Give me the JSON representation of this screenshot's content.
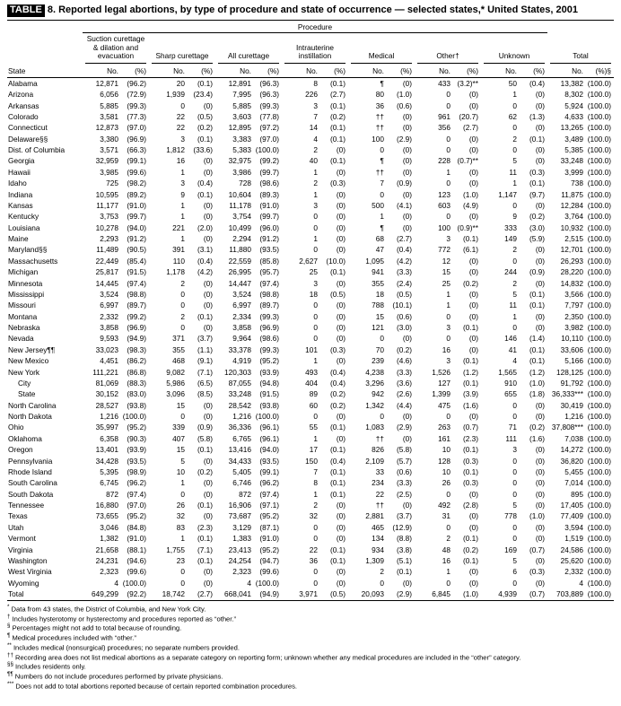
{
  "title": {
    "chip": "TABLE",
    "rest": "8. Reported legal abortions, by type of procedure and state of occurrence — selected states,* United States, 2001"
  },
  "header": {
    "procedure": "Procedure",
    "state": "State",
    "no": "No.",
    "pct": "(%)",
    "total_pct": "(%)§",
    "groups": [
      "Suction curettage & dilation and evacuation",
      "Sharp curettage",
      "All curettage",
      "Intrauterine instillation",
      "Medical",
      "Other†",
      "Unknown",
      "Total"
    ]
  },
  "rows": [
    {
      "state": "Alabama",
      "cells": [
        "12,871",
        "(96.2)",
        "20",
        "(0.1)",
        "12,891",
        "(96.3)",
        "8",
        "(0.1)",
        "¶",
        "(0)",
        "433",
        "(3.2)**",
        "50",
        "(0.4)",
        "13,382",
        "(100.0)"
      ]
    },
    {
      "state": "Arizona",
      "cells": [
        "6,056",
        "(72.9)",
        "1,939",
        "(23.4)",
        "7,995",
        "(96.3)",
        "226",
        "(2.7)",
        "80",
        "(1.0)",
        "0",
        "(0)",
        "1",
        "(0)",
        "8,302",
        "(100.0)"
      ]
    },
    {
      "state": "Arkansas",
      "cells": [
        "5,885",
        "(99.3)",
        "0",
        "(0)",
        "5,885",
        "(99.3)",
        "3",
        "(0.1)",
        "36",
        "(0.6)",
        "0",
        "(0)",
        "0",
        "(0)",
        "5,924",
        "(100.0)"
      ]
    },
    {
      "state": "Colorado",
      "cells": [
        "3,581",
        "(77.3)",
        "22",
        "(0.5)",
        "3,603",
        "(77.8)",
        "7",
        "(0.2)",
        "††",
        "(0)",
        "961",
        "(20.7)",
        "62",
        "(1.3)",
        "4,633",
        "(100.0)"
      ]
    },
    {
      "state": "Connecticut",
      "cells": [
        "12,873",
        "(97.0)",
        "22",
        "(0.2)",
        "12,895",
        "(97.2)",
        "14",
        "(0.1)",
        "††",
        "(0)",
        "356",
        "(2.7)",
        "0",
        "(0)",
        "13,265",
        "(100.0)"
      ]
    },
    {
      "state": "Delaware§§",
      "cells": [
        "3,380",
        "(96.9)",
        "3",
        "(0.1)",
        "3,383",
        "(97.0)",
        "4",
        "(0.1)",
        "100",
        "(2.9)",
        "0",
        "(0)",
        "2",
        "(0.1)",
        "3,489",
        "(100.0)"
      ]
    },
    {
      "state": "Dist. of Columbia",
      "cells": [
        "3,571",
        "(66.3)",
        "1,812",
        "(33.6)",
        "5,383",
        "(100.0)",
        "2",
        "(0)",
        "0",
        "(0)",
        "0",
        "(0)",
        "0",
        "(0)",
        "5,385",
        "(100.0)"
      ]
    },
    {
      "state": "Georgia",
      "cells": [
        "32,959",
        "(99.1)",
        "16",
        "(0)",
        "32,975",
        "(99.2)",
        "40",
        "(0.1)",
        "¶",
        "(0)",
        "228",
        "(0.7)**",
        "5",
        "(0)",
        "33,248",
        "(100.0)"
      ]
    },
    {
      "state": "Hawaii",
      "cells": [
        "3,985",
        "(99.6)",
        "1",
        "(0)",
        "3,986",
        "(99.7)",
        "1",
        "(0)",
        "††",
        "(0)",
        "1",
        "(0)",
        "11",
        "(0.3)",
        "3,999",
        "(100.0)"
      ]
    },
    {
      "state": "Idaho",
      "cells": [
        "725",
        "(98.2)",
        "3",
        "(0.4)",
        "728",
        "(98.6)",
        "2",
        "(0.3)",
        "7",
        "(0.9)",
        "0",
        "(0)",
        "1",
        "(0.1)",
        "738",
        "(100.0)"
      ]
    },
    {
      "state": "Indiana",
      "cells": [
        "10,595",
        "(89.2)",
        "9",
        "(0.1)",
        "10,604",
        "(89.3)",
        "1",
        "(0)",
        "0",
        "(0)",
        "123",
        "(1.0)",
        "1,147",
        "(9.7)",
        "11,875",
        "(100.0)"
      ]
    },
    {
      "state": "Kansas",
      "cells": [
        "11,177",
        "(91.0)",
        "1",
        "(0)",
        "11,178",
        "(91.0)",
        "3",
        "(0)",
        "500",
        "(4.1)",
        "603",
        "(4.9)",
        "0",
        "(0)",
        "12,284",
        "(100.0)"
      ]
    },
    {
      "state": "Kentucky",
      "cells": [
        "3,753",
        "(99.7)",
        "1",
        "(0)",
        "3,754",
        "(99.7)",
        "0",
        "(0)",
        "1",
        "(0)",
        "0",
        "(0)",
        "9",
        "(0.2)",
        "3,764",
        "(100.0)"
      ]
    },
    {
      "state": "Louisiana",
      "cells": [
        "10,278",
        "(94.0)",
        "221",
        "(2.0)",
        "10,499",
        "(96.0)",
        "0",
        "(0)",
        "¶",
        "(0)",
        "100",
        "(0.9)**",
        "333",
        "(3.0)",
        "10,932",
        "(100.0)"
      ]
    },
    {
      "state": "Maine",
      "cells": [
        "2,293",
        "(91.2)",
        "1",
        "(0)",
        "2,294",
        "(91.2)",
        "1",
        "(0)",
        "68",
        "(2.7)",
        "3",
        "(0.1)",
        "149",
        "(5.9)",
        "2,515",
        "(100.0)"
      ]
    },
    {
      "state": "Maryland§§",
      "cells": [
        "11,489",
        "(90.5)",
        "391",
        "(3.1)",
        "11,880",
        "(93.5)",
        "0",
        "(0)",
        "47",
        "(0.4)",
        "772",
        "(6.1)",
        "2",
        "(0)",
        "12,701",
        "(100.0)"
      ]
    },
    {
      "state": "Massachusetts",
      "cells": [
        "22,449",
        "(85.4)",
        "110",
        "(0.4)",
        "22,559",
        "(85.8)",
        "2,627",
        "(10.0)",
        "1,095",
        "(4.2)",
        "12",
        "(0)",
        "0",
        "(0)",
        "26,293",
        "(100.0)"
      ]
    },
    {
      "state": "Michigan",
      "cells": [
        "25,817",
        "(91.5)",
        "1,178",
        "(4.2)",
        "26,995",
        "(95.7)",
        "25",
        "(0.1)",
        "941",
        "(3.3)",
        "15",
        "(0)",
        "244",
        "(0.9)",
        "28,220",
        "(100.0)"
      ]
    },
    {
      "state": "Minnesota",
      "cells": [
        "14,445",
        "(97.4)",
        "2",
        "(0)",
        "14,447",
        "(97.4)",
        "3",
        "(0)",
        "355",
        "(2.4)",
        "25",
        "(0.2)",
        "2",
        "(0)",
        "14,832",
        "(100.0)"
      ]
    },
    {
      "state": "Mississippi",
      "cells": [
        "3,524",
        "(98.8)",
        "0",
        "(0)",
        "3,524",
        "(98.8)",
        "18",
        "(0.5)",
        "18",
        "(0.5)",
        "1",
        "(0)",
        "5",
        "(0.1)",
        "3,566",
        "(100.0)"
      ]
    },
    {
      "state": "Missouri",
      "cells": [
        "6,997",
        "(89.7)",
        "0",
        "(0)",
        "6,997",
        "(89.7)",
        "0",
        "(0)",
        "788",
        "(10.1)",
        "1",
        "(0)",
        "11",
        "(0.1)",
        "7,797",
        "(100.0)"
      ]
    },
    {
      "state": "Montana",
      "cells": [
        "2,332",
        "(99.2)",
        "2",
        "(0.1)",
        "2,334",
        "(99.3)",
        "0",
        "(0)",
        "15",
        "(0.6)",
        "0",
        "(0)",
        "1",
        "(0)",
        "2,350",
        "(100.0)"
      ]
    },
    {
      "state": "Nebraska",
      "cells": [
        "3,858",
        "(96.9)",
        "0",
        "(0)",
        "3,858",
        "(96.9)",
        "0",
        "(0)",
        "121",
        "(3.0)",
        "3",
        "(0.1)",
        "0",
        "(0)",
        "3,982",
        "(100.0)"
      ]
    },
    {
      "state": "Nevada",
      "cells": [
        "9,593",
        "(94.9)",
        "371",
        "(3.7)",
        "9,964",
        "(98.6)",
        "0",
        "(0)",
        "0",
        "(0)",
        "0",
        "(0)",
        "146",
        "(1.4)",
        "10,110",
        "(100.0)"
      ]
    },
    {
      "state": "New Jersey¶¶",
      "cells": [
        "33,023",
        "(98.3)",
        "355",
        "(1.1)",
        "33,378",
        "(99.3)",
        "101",
        "(0.3)",
        "70",
        "(0.2)",
        "16",
        "(0)",
        "41",
        "(0.1)",
        "33,606",
        "(100.0)"
      ]
    },
    {
      "state": "New Mexico",
      "cells": [
        "4,451",
        "(86.2)",
        "468",
        "(9.1)",
        "4,919",
        "(95.2)",
        "1",
        "(0)",
        "239",
        "(4.6)",
        "3",
        "(0.1)",
        "4",
        "(0.1)",
        "5,166",
        "(100.0)"
      ]
    },
    {
      "state": "New York",
      "cells": [
        "111,221",
        "(86.8)",
        "9,082",
        "(7.1)",
        "120,303",
        "(93.9)",
        "493",
        "(0.4)",
        "4,238",
        "(3.3)",
        "1,526",
        "(1.2)",
        "1,565",
        "(1.2)",
        "128,125",
        "(100.0)"
      ]
    },
    {
      "state": "City",
      "indent": true,
      "cells": [
        "81,069",
        "(88.3)",
        "5,986",
        "(6.5)",
        "87,055",
        "(94.8)",
        "404",
        "(0.4)",
        "3,296",
        "(3.6)",
        "127",
        "(0.1)",
        "910",
        "(1.0)",
        "91,792",
        "(100.0)"
      ]
    },
    {
      "state": "State",
      "indent": true,
      "cells": [
        "30,152",
        "(83.0)",
        "3,096",
        "(8.5)",
        "33,248",
        "(91.5)",
        "89",
        "(0.2)",
        "942",
        "(2.6)",
        "1,399",
        "(3.9)",
        "655",
        "(1.8)",
        "36,333***",
        "(100.0)"
      ]
    },
    {
      "state": "North Carolina",
      "cells": [
        "28,527",
        "(93.8)",
        "15",
        "(0)",
        "28,542",
        "(93.8)",
        "60",
        "(0.2)",
        "1,342",
        "(4.4)",
        "475",
        "(1.6)",
        "0",
        "(0)",
        "30,419",
        "(100.0)"
      ]
    },
    {
      "state": "North Dakota",
      "cells": [
        "1,216",
        "(100.0)",
        "0",
        "(0)",
        "1,216",
        "(100.0)",
        "0",
        "(0)",
        "0",
        "(0)",
        "0",
        "(0)",
        "0",
        "(0)",
        "1,216",
        "(100.0)"
      ]
    },
    {
      "state": "Ohio",
      "cells": [
        "35,997",
        "(95.2)",
        "339",
        "(0.9)",
        "36,336",
        "(96.1)",
        "55",
        "(0.1)",
        "1,083",
        "(2.9)",
        "263",
        "(0.7)",
        "71",
        "(0.2)",
        "37,808***",
        "(100.0)"
      ]
    },
    {
      "state": "Oklahoma",
      "cells": [
        "6,358",
        "(90.3)",
        "407",
        "(5.8)",
        "6,765",
        "(96.1)",
        "1",
        "(0)",
        "††",
        "(0)",
        "161",
        "(2.3)",
        "111",
        "(1.6)",
        "7,038",
        "(100.0)"
      ]
    },
    {
      "state": "Oregon",
      "cells": [
        "13,401",
        "(93.9)",
        "15",
        "(0.1)",
        "13,416",
        "(94.0)",
        "17",
        "(0.1)",
        "826",
        "(5.8)",
        "10",
        "(0.1)",
        "3",
        "(0)",
        "14,272",
        "(100.0)"
      ]
    },
    {
      "state": "Pennsylvania",
      "cells": [
        "34,428",
        "(93.5)",
        "5",
        "(0)",
        "34,433",
        "(93.5)",
        "150",
        "(0.4)",
        "2,109",
        "(5.7)",
        "128",
        "(0.3)",
        "0",
        "(0)",
        "36,820",
        "(100.0)"
      ]
    },
    {
      "state": "Rhode Island",
      "cells": [
        "5,395",
        "(98.9)",
        "10",
        "(0.2)",
        "5,405",
        "(99.1)",
        "7",
        "(0.1)",
        "33",
        "(0.6)",
        "10",
        "(0.1)",
        "0",
        "(0)",
        "5,455",
        "(100.0)"
      ]
    },
    {
      "state": "South Carolina",
      "cells": [
        "6,745",
        "(96.2)",
        "1",
        "(0)",
        "6,746",
        "(96.2)",
        "8",
        "(0.1)",
        "234",
        "(3.3)",
        "26",
        "(0.3)",
        "0",
        "(0)",
        "7,014",
        "(100.0)"
      ]
    },
    {
      "state": "South Dakota",
      "cells": [
        "872",
        "(97.4)",
        "0",
        "(0)",
        "872",
        "(97.4)",
        "1",
        "(0.1)",
        "22",
        "(2.5)",
        "0",
        "(0)",
        "0",
        "(0)",
        "895",
        "(100.0)"
      ]
    },
    {
      "state": "Tennessee",
      "cells": [
        "16,880",
        "(97.0)",
        "26",
        "(0.1)",
        "16,906",
        "(97.1)",
        "2",
        "(0)",
        "††",
        "(0)",
        "492",
        "(2.8)",
        "5",
        "(0)",
        "17,405",
        "(100.0)"
      ]
    },
    {
      "state": "Texas",
      "cells": [
        "73,655",
        "(95.2)",
        "32",
        "(0)",
        "73,687",
        "(95.2)",
        "32",
        "(0)",
        "2,881",
        "(3.7)",
        "31",
        "(0)",
        "778",
        "(1.0)",
        "77,409",
        "(100.0)"
      ]
    },
    {
      "state": "Utah",
      "cells": [
        "3,046",
        "(84.8)",
        "83",
        "(2.3)",
        "3,129",
        "(87.1)",
        "0",
        "(0)",
        "465",
        "(12.9)",
        "0",
        "(0)",
        "0",
        "(0)",
        "3,594",
        "(100.0)"
      ]
    },
    {
      "state": "Vermont",
      "cells": [
        "1,382",
        "(91.0)",
        "1",
        "(0.1)",
        "1,383",
        "(91.0)",
        "0",
        "(0)",
        "134",
        "(8.8)",
        "2",
        "(0.1)",
        "0",
        "(0)",
        "1,519",
        "(100.0)"
      ]
    },
    {
      "state": "Virginia",
      "cells": [
        "21,658",
        "(88.1)",
        "1,755",
        "(7.1)",
        "23,413",
        "(95.2)",
        "22",
        "(0.1)",
        "934",
        "(3.8)",
        "48",
        "(0.2)",
        "169",
        "(0.7)",
        "24,586",
        "(100.0)"
      ]
    },
    {
      "state": "Washington",
      "cells": [
        "24,231",
        "(94.6)",
        "23",
        "(0.1)",
        "24,254",
        "(94.7)",
        "36",
        "(0.1)",
        "1,309",
        "(5.1)",
        "16",
        "(0.1)",
        "5",
        "(0)",
        "25,620",
        "(100.0)"
      ]
    },
    {
      "state": "West Virginia",
      "cells": [
        "2,323",
        "(99.6)",
        "0",
        "(0)",
        "2,323",
        "(99.6)",
        "0",
        "(0)",
        "2",
        "(0.1)",
        "1",
        "(0)",
        "6",
        "(0.3)",
        "2,332",
        "(100.0)"
      ]
    },
    {
      "state": "Wyoming",
      "cells": [
        "4",
        "(100.0)",
        "0",
        "(0)",
        "4",
        "(100.0)",
        "0",
        "(0)",
        "0",
        "(0)",
        "0",
        "(0)",
        "0",
        "(0)",
        "4",
        "(100.0)"
      ]
    },
    {
      "state": "Total",
      "total": true,
      "cells": [
        "649,299",
        "(92.2)",
        "18,742",
        "(2.7)",
        "668,041",
        "(94.9)",
        "3,971",
        "(0.5)",
        "20,093",
        "(2.9)",
        "6,845",
        "(1.0)",
        "4,939",
        "(0.7)",
        "703,889",
        "(100.0)"
      ]
    }
  ],
  "footnotes": [
    {
      "marker": "*",
      "text": "Data from 43 states, the District of Columbia, and New York City."
    },
    {
      "marker": "†",
      "text": "Includes hysterotomy or hysterectomy and procedures reported as “other.”"
    },
    {
      "marker": "§",
      "text": "Percentages might not add to total because of rounding."
    },
    {
      "marker": "¶",
      "text": "Medical procedures included with “other.”"
    },
    {
      "marker": "**",
      "text": "Includes medical (nonsurgical) procedures; no separate numbers provided."
    },
    {
      "marker": "††",
      "text": "Recording area does not list medical abortions as a separate category on reporting form; unknown whether any medical procedures are included in the “other” category."
    },
    {
      "marker": "§§",
      "text": "Includes residents only."
    },
    {
      "marker": "¶¶",
      "text": "Numbers do not include procedures performed by private physicians."
    },
    {
      "marker": "***",
      "text": "Does not add to total abortions reported because of certain reported combination procedures."
    }
  ]
}
